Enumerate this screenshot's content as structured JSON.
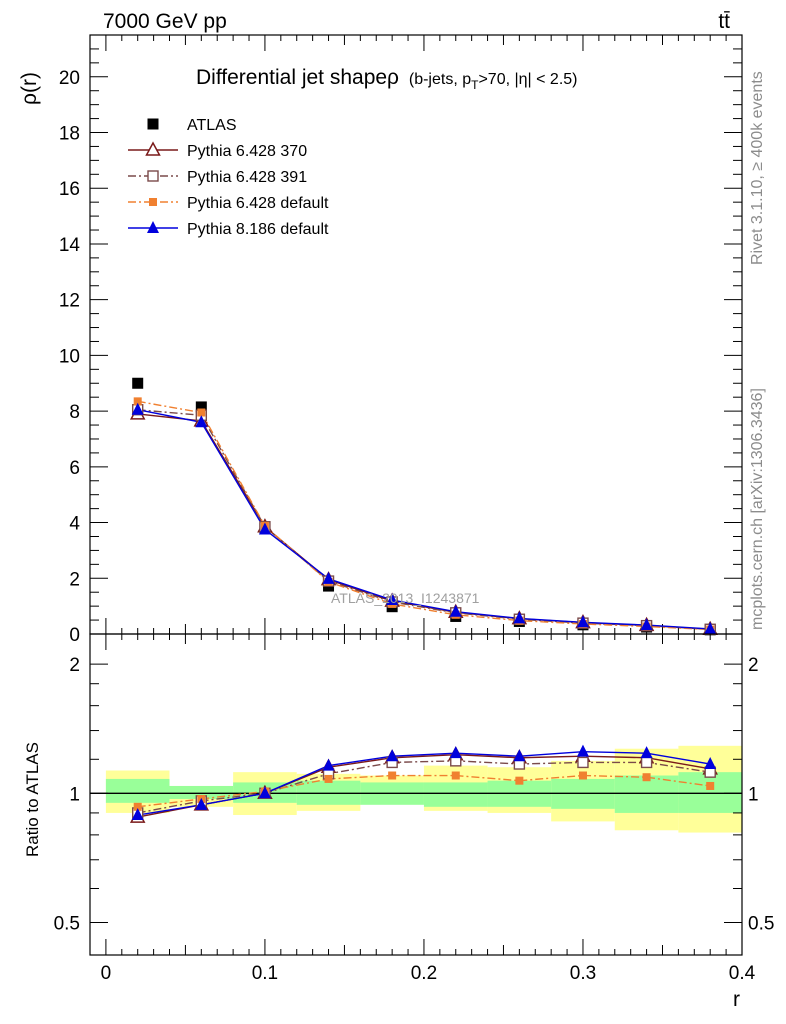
{
  "header": {
    "left": "7000 GeV pp",
    "right": "tt̄"
  },
  "side_labels": {
    "rivet": "Rivet 3.1.10, ≥ 400k events",
    "mcplots": "mcplots.cern.ch [arXiv:1306.3436]"
  },
  "watermark": "ATLAS_2013_I1243871",
  "chart_data": [
    {
      "type": "line",
      "title_main": "Differential jet shapeρ",
      "title_sub": "(b-jets, p_T>70, |η| < 2.5)",
      "ylabel": "ρ(r)",
      "xlabel": "",
      "xlim": [
        -0.01,
        0.4
      ],
      "ylim": [
        0,
        21.5
      ],
      "x_ticks": [
        0,
        0.1,
        0.2,
        0.3,
        0.4
      ],
      "y_ticks": [
        0,
        2,
        4,
        6,
        8,
        10,
        12,
        14,
        16,
        18,
        20
      ],
      "y_tick_labels": [
        "0",
        "2",
        "4",
        "6",
        "8",
        "10",
        "12",
        "14",
        "16",
        "18",
        "20"
      ],
      "x": [
        0.02,
        0.06,
        0.1,
        0.14,
        0.18,
        0.22,
        0.26,
        0.3,
        0.34,
        0.38
      ],
      "series": [
        {
          "name": "ATLAS",
          "color": "#000000",
          "marker": "square-filled",
          "line": "none",
          "values": [
            9.0,
            8.15,
            3.8,
            1.72,
            0.98,
            0.63,
            0.45,
            0.33,
            0.25,
            0.15
          ]
        },
        {
          "name": "Pythia 6.428 370",
          "color": "#7a1a1a",
          "marker": "triangle-open",
          "line": "solid",
          "values": [
            7.9,
            7.65,
            3.85,
            1.95,
            1.18,
            0.78,
            0.55,
            0.41,
            0.31,
            0.17
          ]
        },
        {
          "name": "Pythia 6.428 391",
          "color": "#7a4a4a",
          "marker": "square-open",
          "line": "dashdot",
          "values": [
            8.05,
            7.85,
            3.85,
            1.9,
            1.15,
            0.76,
            0.53,
            0.39,
            0.3,
            0.17
          ]
        },
        {
          "name": "Pythia 6.428 default",
          "color": "#f08030",
          "marker": "square-filled-small",
          "line": "dashdot",
          "values": [
            8.35,
            7.95,
            3.88,
            1.87,
            1.08,
            0.69,
            0.48,
            0.36,
            0.27,
            0.16
          ]
        },
        {
          "name": "Pythia 8.186 default",
          "color": "#0000dd",
          "marker": "triangle-filled",
          "line": "solid",
          "values": [
            8.05,
            7.6,
            3.75,
            1.98,
            1.22,
            0.8,
            0.56,
            0.42,
            0.32,
            0.18
          ]
        }
      ]
    },
    {
      "type": "line",
      "ylabel": "Ratio to ATLAS",
      "xlabel": "r",
      "scale": "log",
      "xlim": [
        -0.01,
        0.4
      ],
      "ylim": [
        0.42,
        2.35
      ],
      "x_ticks": [
        0,
        0.1,
        0.2,
        0.3,
        0.4
      ],
      "x_tick_labels": [
        "0",
        "0.1",
        "0.2",
        "0.3",
        "0.4"
      ],
      "y_ticks": [
        0.5,
        1,
        2
      ],
      "y_tick_labels": [
        "0.5",
        "1",
        "2"
      ],
      "bin_edges": [
        0,
        0.04,
        0.08,
        0.12,
        0.16,
        0.2,
        0.24,
        0.28,
        0.32,
        0.36,
        0.4
      ],
      "band_green": [
        [
          0.95,
          1.08
        ],
        [
          0.97,
          1.04
        ],
        [
          0.95,
          1.06
        ],
        [
          0.94,
          1.07
        ],
        [
          0.94,
          1.06
        ],
        [
          0.93,
          1.06
        ],
        [
          0.93,
          1.07
        ],
        [
          0.92,
          1.08
        ],
        [
          0.9,
          1.1
        ],
        [
          0.9,
          1.12
        ]
      ],
      "band_yellow": [
        [
          0.9,
          1.13
        ],
        [
          0.93,
          1.04
        ],
        [
          0.89,
          1.12
        ],
        [
          0.91,
          1.11
        ],
        [
          0.96,
          1.1
        ],
        [
          0.91,
          1.16
        ],
        [
          0.9,
          1.15
        ],
        [
          0.86,
          1.19
        ],
        [
          0.82,
          1.27
        ],
        [
          0.81,
          1.29
        ]
      ],
      "x": [
        0.02,
        0.06,
        0.1,
        0.14,
        0.18,
        0.22,
        0.26,
        0.3,
        0.34,
        0.38
      ],
      "series": [
        {
          "name": "Pythia 6.428 370",
          "color": "#7a1a1a",
          "marker": "triangle-open",
          "line": "solid",
          "values": [
            0.88,
            0.94,
            1.0,
            1.15,
            1.21,
            1.23,
            1.21,
            1.22,
            1.21,
            1.14
          ]
        },
        {
          "name": "Pythia 6.428 391",
          "color": "#7a4a4a",
          "marker": "square-open",
          "line": "dashdot",
          "values": [
            0.9,
            0.96,
            1.0,
            1.11,
            1.18,
            1.19,
            1.17,
            1.18,
            1.18,
            1.12
          ]
        },
        {
          "name": "Pythia 6.428 default",
          "color": "#f08030",
          "marker": "square-filled-small",
          "line": "dashdot",
          "values": [
            0.93,
            0.97,
            1.01,
            1.08,
            1.1,
            1.1,
            1.07,
            1.1,
            1.09,
            1.04
          ]
        },
        {
          "name": "Pythia 8.186 default",
          "color": "#0000dd",
          "marker": "triangle-filled",
          "line": "solid",
          "values": [
            0.89,
            0.94,
            1.0,
            1.16,
            1.22,
            1.24,
            1.22,
            1.25,
            1.24,
            1.17
          ]
        }
      ]
    }
  ]
}
